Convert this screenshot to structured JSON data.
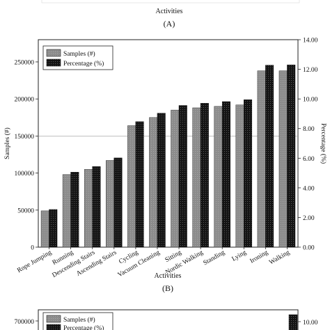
{
  "top_strip": {
    "xlabel": "Activities",
    "panel_label": "(A)"
  },
  "chart_data": [
    {
      "type": "bar",
      "panel_label": "(B)",
      "xlabel": "Activities",
      "ylabel_left": "Samples (#)",
      "ylabel_right": "Percentage (%)",
      "legend_position": "top-left",
      "grid": false,
      "ylim_left": [
        0,
        280000
      ],
      "ylim_right": [
        0,
        14
      ],
      "yticks_left": [
        "0",
        "50000",
        "100000",
        "150000",
        "200000",
        "250000"
      ],
      "yticks_right": [
        "0.00",
        "2.00",
        "4.00",
        "6.00",
        "8.00",
        "10.00",
        "12.00",
        "14.00"
      ],
      "categories": [
        "Rope Jumping",
        "Running",
        "Descending Stairs",
        "Ascending Stairs",
        "Cycling",
        "Vacuum Cleaning",
        "Sitting",
        "Nordic Walking",
        "Standing",
        "Lying",
        "Ironing",
        "Walking"
      ],
      "series": [
        {
          "name": "Samples (#)",
          "axis": "left",
          "color": "#8c8c8c",
          "values": [
            49000,
            98000,
            105000,
            117000,
            164000,
            175000,
            185000,
            188000,
            190000,
            192000,
            238000,
            238000
          ]
        },
        {
          "name": "Percentage (%)",
          "axis": "right",
          "color": "#141414",
          "values": [
            2.54,
            5.06,
            5.44,
            6.02,
            8.47,
            9.04,
            9.56,
            9.71,
            9.82,
            9.95,
            12.28,
            12.3
          ]
        }
      ]
    },
    {
      "type": "bar",
      "partial": true,
      "legend_position": "top-left",
      "yticks_left": [
        "700000"
      ],
      "yticks_right": [
        "10.00"
      ],
      "series": [
        {
          "name": "Samples (#)",
          "color": "#8c8c8c"
        },
        {
          "name": "Percentage (%)",
          "color": "#141414"
        }
      ]
    }
  ]
}
